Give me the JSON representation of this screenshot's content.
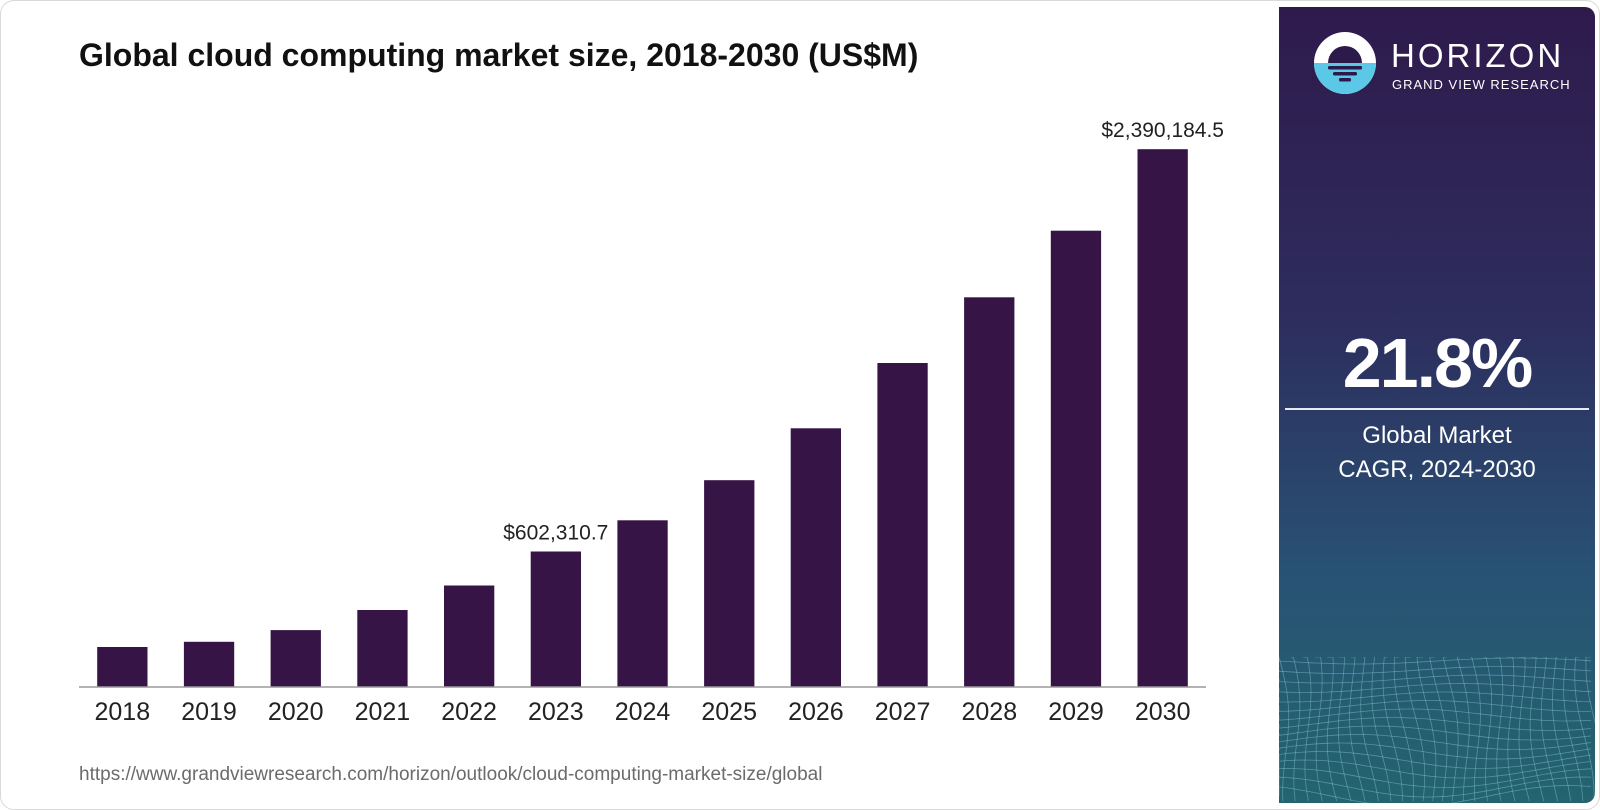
{
  "title": "Global cloud computing market size, 2018-2030 (US$M)",
  "source_url": "https://www.grandviewresearch.com/horizon/outlook/cloud-computing-market-size/global",
  "brand": {
    "name": "HORIZON",
    "subtitle": "GRAND VIEW RESEARCH",
    "colors": {
      "bar": "#371446",
      "logo_light": "#5cc8e8",
      "logo_dark": "#2c1a4a"
    }
  },
  "highlight": {
    "value": "21.8%",
    "label_line1": "Global Market",
    "label_line2": "CAGR, 2024-2030"
  },
  "chart_data": {
    "type": "bar",
    "title": "Global cloud computing market size, 2018-2030 (US$M)",
    "xlabel": "",
    "ylabel": "",
    "categories": [
      "2018",
      "2019",
      "2020",
      "2021",
      "2022",
      "2023",
      "2024",
      "2025",
      "2026",
      "2027",
      "2028",
      "2029",
      "2030"
    ],
    "values": [
      178000,
      201000,
      253000,
      342000,
      451000,
      602310.7,
      741000,
      919000,
      1150000,
      1440000,
      1732000,
      2028000,
      2390184.5
    ],
    "data_labels": [
      {
        "index": 5,
        "text": "$602,310.7"
      },
      {
        "index": 12,
        "text": "$2,390,184.5"
      }
    ],
    "ylim": [
      0,
      2400000
    ],
    "grid": false,
    "legend": "none"
  }
}
